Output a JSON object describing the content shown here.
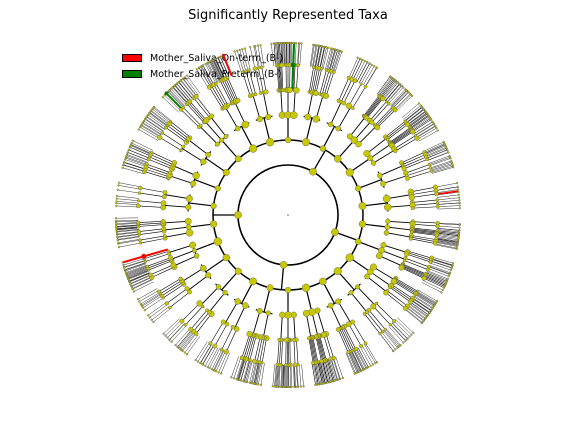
{
  "title": "Significantly Represented Taxa",
  "legend": [
    {
      "label": "Mother_Saliva_On-term_(B-)",
      "color": "#ff0000"
    },
    {
      "label": "Mother_Saliva_Preterm_(B-)",
      "color": "#008000"
    }
  ],
  "colors": {
    "node_default": "#c8c800",
    "edge": "#000000",
    "highlight_on_term": "#ff0000",
    "highlight_preterm": "#008000"
  }
}
